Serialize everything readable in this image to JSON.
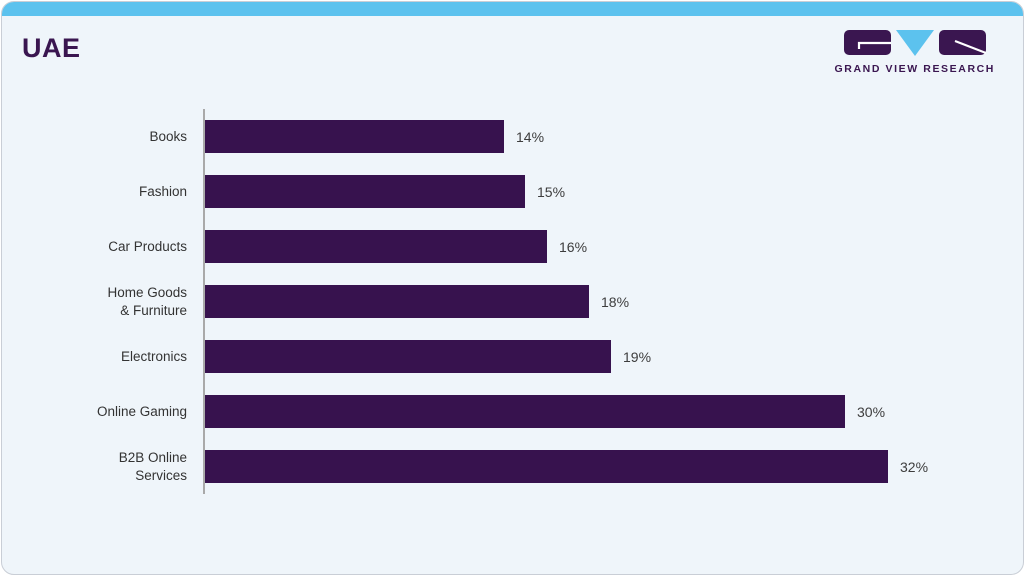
{
  "header": {
    "title": "UAE"
  },
  "logo": {
    "brand": "GRAND VIEW RESEARCH"
  },
  "colors": {
    "accent_blue": "#5cc2ee",
    "bar_purple": "#37124e",
    "brand_purple": "#3a1650",
    "card_background": "#eff5fa",
    "axis_gray": "#a9a9a9",
    "text_gray": "#333333"
  },
  "chart_data": {
    "type": "bar",
    "orientation": "horizontal",
    "title": "UAE",
    "xlabel": "",
    "ylabel": "",
    "xlim": [
      0,
      32
    ],
    "grid": false,
    "legend": false,
    "bar_color": "#37124e",
    "categories": [
      "Books",
      "Fashion",
      "Car Products",
      "Home Goods & Furniture",
      "Electronics",
      "Online Gaming",
      "B2B Online Services"
    ],
    "categories_display": [
      "Books",
      "Fashion",
      "Car Products",
      "Home Goods\n& Furniture",
      "Electronics",
      "Online Gaming",
      "B2B Online\nServices"
    ],
    "values": [
      14,
      15,
      16,
      18,
      19,
      30,
      32
    ],
    "value_labels": [
      "14%",
      "15%",
      "16%",
      "18%",
      "19%",
      "30%",
      "32%"
    ]
  }
}
